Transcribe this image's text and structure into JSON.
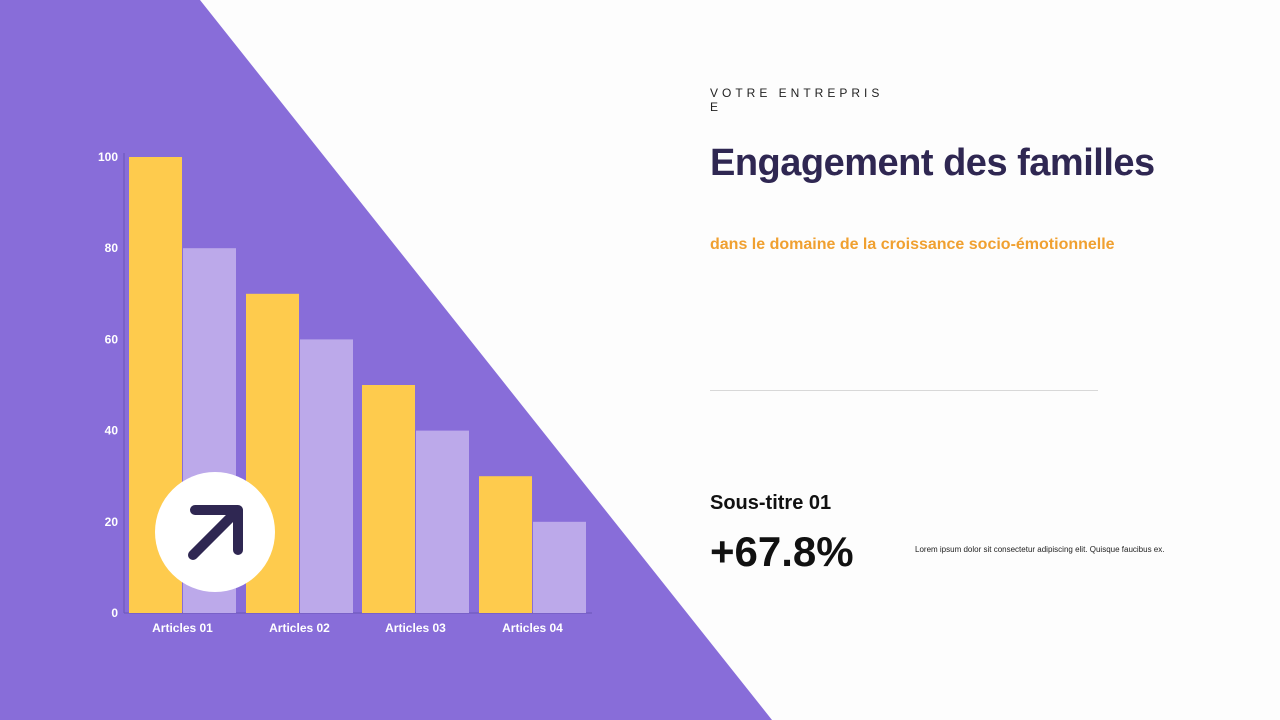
{
  "colors": {
    "background_triangle": "#886dd9",
    "series_a": "#fecb4d",
    "series_b": "#bca9ea",
    "title": "#2f2752",
    "accent": "#f0a030"
  },
  "header": {
    "kicker": "VOTRE ENTREPRISE",
    "title": "Engagement des familles",
    "subtitle": "dans le domaine de la croissance socio-émotionnelle"
  },
  "stat": {
    "label": "Sous-titre 01",
    "value": "+67.8%",
    "description": "Lorem ipsum dolor sit consectetur adipiscing elit. Quisque faucibus ex."
  },
  "badge": {
    "icon": "arrow-up-right-icon"
  },
  "chart_data": {
    "type": "bar",
    "categories": [
      "Articles 01",
      "Articles 02",
      "Articles 03",
      "Articles 04"
    ],
    "series": [
      {
        "values": [
          100,
          70,
          50,
          30
        ]
      },
      {
        "values": [
          80,
          60,
          40,
          20
        ]
      }
    ],
    "yticks": [
      "0",
      "20",
      "40",
      "60",
      "80",
      "100"
    ],
    "ylim": [
      0,
      100
    ],
    "grid": false,
    "legend": "none"
  }
}
